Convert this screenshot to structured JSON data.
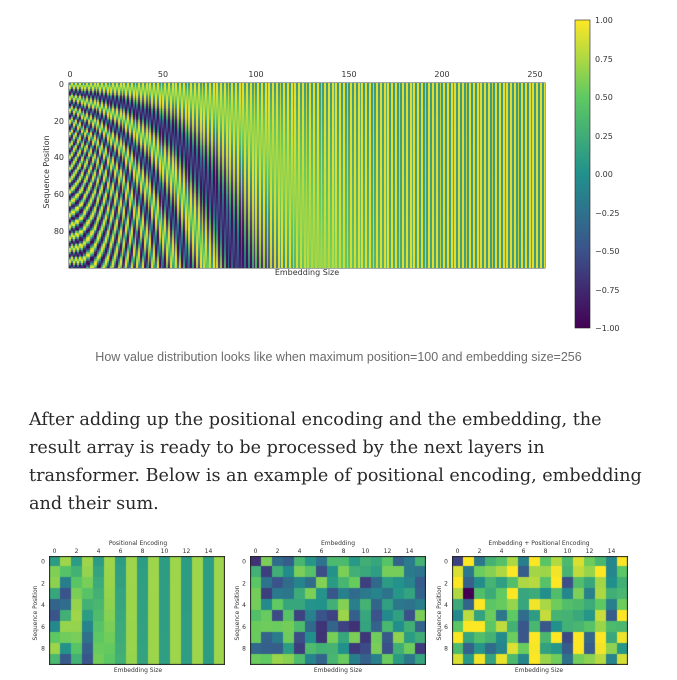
{
  "main_figure": {
    "xticks": [
      "0",
      "50",
      "100",
      "150",
      "200",
      "250"
    ],
    "yticks": [
      "0",
      "20",
      "40",
      "60",
      "80"
    ],
    "xlabel": "Embedding Size",
    "ylabel": "Sequence Position",
    "max_position": 100,
    "embedding_size": 256
  },
  "colorbar": {
    "ticks": [
      "1.00",
      "0.75",
      "0.50",
      "0.25",
      "0.00",
      "−0.25",
      "−0.50",
      "−0.75",
      "−1.00"
    ],
    "colors": [
      "#440154",
      "#3b528b",
      "#21918c",
      "#5ec962",
      "#fde725"
    ]
  },
  "caption": "How value distribution looks like when maximum position=100 and embedding size=256",
  "paragraph": "After adding up the positional encoding and the embedding, the result array is ready to be processed by the next layers in transformer. Below is an example of positional encoding, embedding and their sum.",
  "small_figures": [
    {
      "title": "Positional Encoding",
      "xlabel": "Embedding Size",
      "ylabel": "Sequence Position",
      "xticks": [
        "0",
        "2",
        "4",
        "6",
        "8",
        "10",
        "12",
        "14"
      ],
      "yticks": [
        "0",
        "2",
        "4",
        "6",
        "8"
      ]
    },
    {
      "title": "Embedding",
      "xlabel": "Embedding Size",
      "ylabel": "Sequence Position",
      "xticks": [
        "0",
        "2",
        "4",
        "6",
        "8",
        "10",
        "12",
        "14"
      ],
      "yticks": [
        "0",
        "2",
        "4",
        "6",
        "8"
      ]
    },
    {
      "title": "Embedding + Positional Encoding",
      "xlabel": "Embedding Size",
      "ylabel": "Sequence Position",
      "xticks": [
        "0",
        "2",
        "4",
        "6",
        "8",
        "10",
        "12",
        "14"
      ],
      "yticks": [
        "0",
        "2",
        "4",
        "6",
        "8"
      ]
    }
  ]
}
